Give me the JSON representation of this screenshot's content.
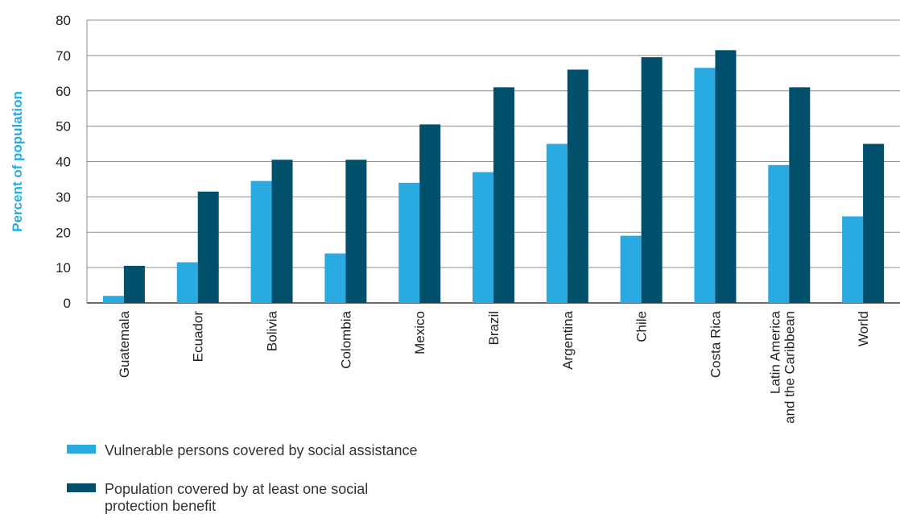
{
  "chart_data": {
    "type": "bar",
    "ylabel": "Percent of population",
    "ylim": [
      0,
      80
    ],
    "yticks": [
      0,
      10,
      20,
      30,
      40,
      50,
      60,
      70,
      80
    ],
    "grid": "horizontal",
    "legend": "bottom-left",
    "categories": [
      [
        "Guatemala"
      ],
      [
        "Ecuador"
      ],
      [
        "Bolivia"
      ],
      [
        "Colombia"
      ],
      [
        "Mexico"
      ],
      [
        "Brazil"
      ],
      [
        "Argentina"
      ],
      [
        "Chile"
      ],
      [
        "Costa Rica"
      ],
      [
        "Latin America",
        "and the Caribbean"
      ],
      [
        "World"
      ]
    ],
    "series": [
      {
        "name": "Vulnerable persons covered by social assistance",
        "color": "#29abe2",
        "values": [
          2,
          11.5,
          34.5,
          14,
          34,
          37,
          45,
          19,
          66.5,
          39,
          24.5
        ]
      },
      {
        "name": [
          "Population covered by at least one social",
          "protection benefit"
        ],
        "color": "#004f6b",
        "values": [
          10.5,
          31.5,
          40.5,
          40.5,
          50.5,
          61,
          66,
          69.5,
          71.5,
          61,
          45
        ]
      }
    ]
  }
}
